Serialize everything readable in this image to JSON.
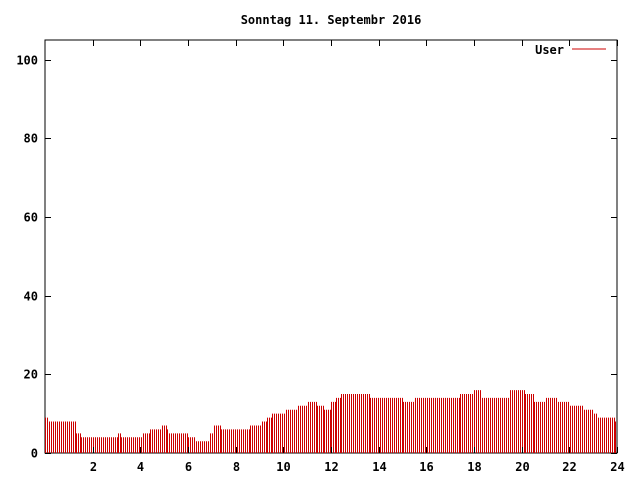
{
  "chart_data": {
    "type": "bar",
    "title": "Sonntag 11. Septembr 2016",
    "xlabel": "",
    "ylabel": "",
    "xlim": [
      0,
      24
    ],
    "ylim": [
      0,
      105
    ],
    "x_ticks": [
      2,
      4,
      6,
      8,
      10,
      12,
      14,
      16,
      18,
      20,
      22,
      24
    ],
    "x_tick_labels": [
      "2",
      "4",
      "6",
      "8",
      "10",
      "12",
      "14",
      "16",
      "18",
      "20",
      "22",
      "24"
    ],
    "y_ticks": [
      0,
      20,
      40,
      60,
      80,
      100
    ],
    "y_tick_labels": [
      "0",
      "20",
      "40",
      "60",
      "80",
      "100"
    ],
    "grid": false,
    "legend_position": "top-right",
    "series": [
      {
        "name": "User",
        "color": "#cc0000",
        "segments": [
          {
            "from": 0.0,
            "to": 0.15,
            "value": 9
          },
          {
            "from": 0.15,
            "to": 1.3,
            "value": 8
          },
          {
            "from": 1.3,
            "to": 1.5,
            "value": 5
          },
          {
            "from": 1.5,
            "to": 3.05,
            "value": 4
          },
          {
            "from": 3.05,
            "to": 3.15,
            "value": 5
          },
          {
            "from": 3.15,
            "to": 4.1,
            "value": 4
          },
          {
            "from": 4.1,
            "to": 4.4,
            "value": 5
          },
          {
            "from": 4.4,
            "to": 4.9,
            "value": 6
          },
          {
            "from": 4.9,
            "to": 5.1,
            "value": 7
          },
          {
            "from": 5.1,
            "to": 5.2,
            "value": 6
          },
          {
            "from": 5.2,
            "to": 6.0,
            "value": 5
          },
          {
            "from": 6.0,
            "to": 6.3,
            "value": 4
          },
          {
            "from": 6.3,
            "to": 6.9,
            "value": 3
          },
          {
            "from": 6.9,
            "to": 7.05,
            "value": 5
          },
          {
            "from": 7.05,
            "to": 7.35,
            "value": 7
          },
          {
            "from": 7.35,
            "to": 8.6,
            "value": 6
          },
          {
            "from": 8.6,
            "to": 9.1,
            "value": 7
          },
          {
            "from": 9.1,
            "to": 9.3,
            "value": 8
          },
          {
            "from": 9.3,
            "to": 9.5,
            "value": 9
          },
          {
            "from": 9.5,
            "to": 10.1,
            "value": 10
          },
          {
            "from": 10.1,
            "to": 10.6,
            "value": 11
          },
          {
            "from": 10.6,
            "to": 11.0,
            "value": 12
          },
          {
            "from": 11.0,
            "to": 11.4,
            "value": 13
          },
          {
            "from": 11.4,
            "to": 11.7,
            "value": 12
          },
          {
            "from": 11.7,
            "to": 12.0,
            "value": 11
          },
          {
            "from": 12.0,
            "to": 12.2,
            "value": 13
          },
          {
            "from": 12.2,
            "to": 12.4,
            "value": 14
          },
          {
            "from": 12.4,
            "to": 13.6,
            "value": 15
          },
          {
            "from": 13.6,
            "to": 15.0,
            "value": 14
          },
          {
            "from": 15.0,
            "to": 15.5,
            "value": 13
          },
          {
            "from": 15.5,
            "to": 17.4,
            "value": 14
          },
          {
            "from": 17.4,
            "to": 18.0,
            "value": 15
          },
          {
            "from": 18.0,
            "to": 18.3,
            "value": 16
          },
          {
            "from": 18.3,
            "to": 19.5,
            "value": 14
          },
          {
            "from": 19.5,
            "to": 20.1,
            "value": 16
          },
          {
            "from": 20.1,
            "to": 20.5,
            "value": 15
          },
          {
            "from": 20.5,
            "to": 21.0,
            "value": 13
          },
          {
            "from": 21.0,
            "to": 21.5,
            "value": 14
          },
          {
            "from": 21.5,
            "to": 22.0,
            "value": 13
          },
          {
            "from": 22.0,
            "to": 22.6,
            "value": 12
          },
          {
            "from": 22.6,
            "to": 23.0,
            "value": 11
          },
          {
            "from": 23.0,
            "to": 23.2,
            "value": 10
          },
          {
            "from": 23.2,
            "to": 23.9,
            "value": 9
          },
          {
            "from": 23.9,
            "to": 24.0,
            "value": 8
          }
        ]
      }
    ]
  }
}
